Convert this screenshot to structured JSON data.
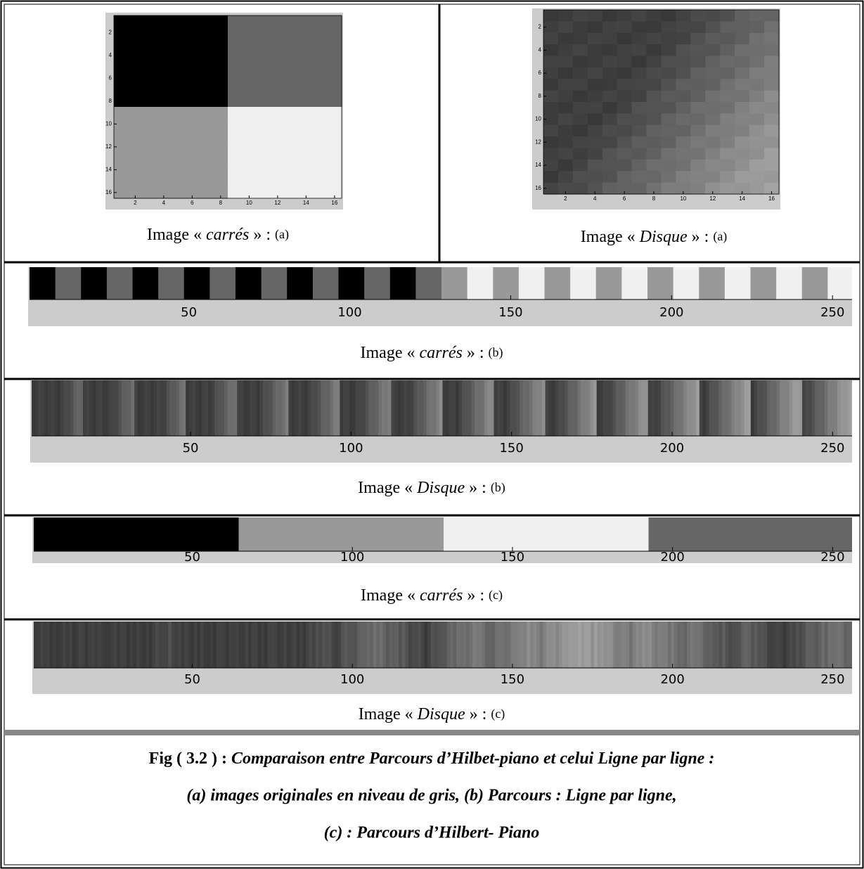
{
  "panels": [
    {
      "caption": {
        "prefix": "Image  « ",
        "name": "carrés",
        "suffix": " » : ",
        "tag": "(a)"
      },
      "xticks": [
        2,
        4,
        6,
        8,
        10,
        12,
        14,
        16
      ],
      "yticks": [
        2,
        4,
        6,
        8,
        10,
        12,
        14,
        16
      ]
    },
    {
      "caption": {
        "prefix": "Image « ",
        "name": "Disque",
        "suffix": " » : ",
        "tag": "(a)"
      },
      "xticks": [
        2,
        4,
        6,
        8,
        10,
        12,
        14,
        16
      ],
      "yticks": [
        2,
        4,
        6,
        8,
        10,
        12,
        14,
        16
      ]
    }
  ],
  "strips": [
    {
      "caption": {
        "prefix": "Image « ",
        "name": "carrés",
        "suffix": " » : ",
        "tag": "(b)"
      },
      "xticks": [
        50,
        100,
        150,
        200,
        250
      ]
    },
    {
      "caption": {
        "prefix": "Image  « ",
        "name": "Disque",
        "suffix": " » : ",
        "tag": "(b)"
      },
      "xticks": [
        50,
        100,
        150,
        200,
        250
      ]
    },
    {
      "caption": {
        "prefix": "Image « ",
        "name": "carrés",
        "suffix": " » : ",
        "tag": "(c)"
      },
      "xticks": [
        50,
        100,
        150,
        200,
        250
      ]
    },
    {
      "caption": {
        "prefix": "Image  « ",
        "name": "Disque",
        "suffix": " » : ",
        "tag": "(c)"
      },
      "xticks": [
        50,
        100,
        150,
        200,
        250
      ]
    }
  ],
  "figure_caption": {
    "label": "Fig  ( 3.2 ) : ",
    "lines": [
      "Comparaison entre Parcours d’Hilbet-piano et celui Ligne par ligne :",
      "(a) images originales  en niveau de gris, (b) Parcours : Ligne par ligne,",
      "(c) : Parcours d’Hilbert- Piano"
    ]
  }
}
